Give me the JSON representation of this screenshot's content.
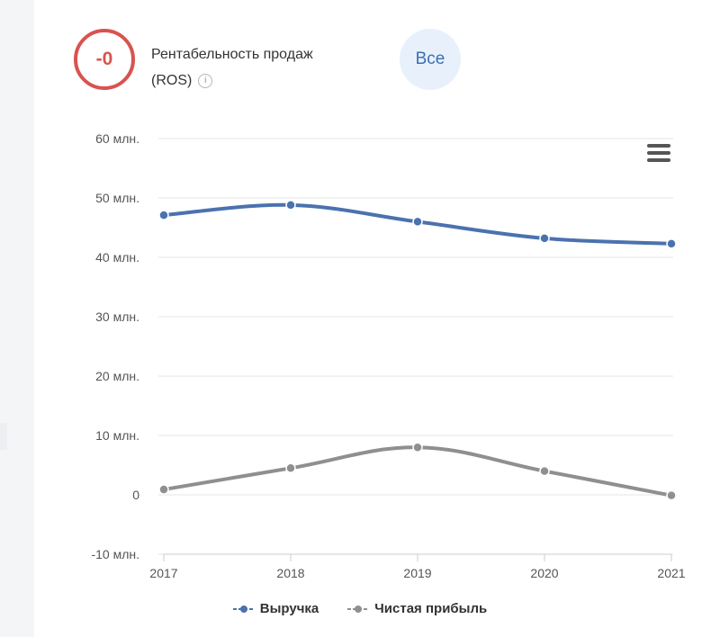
{
  "header": {
    "indicator_value": "-0",
    "indicator_color": "#d9534f",
    "title": "Рентабельность продаж",
    "subtitle": "(ROS)",
    "info_icon": "info-icon",
    "filter_button_label": "Все",
    "menu_icon": "hamburger-menu-icon"
  },
  "chart_data": {
    "type": "line",
    "x": [
      "2017",
      "2018",
      "2019",
      "2020",
      "2021"
    ],
    "y_ticks": [
      "-10 млн.",
      "0",
      "10 млн.",
      "20 млн.",
      "30 млн.",
      "40 млн.",
      "50 млн.",
      "60 млн."
    ],
    "y_tick_values": [
      -10,
      0,
      10,
      20,
      30,
      40,
      50,
      60
    ],
    "ylim": [
      -10,
      60
    ],
    "unit": "млн.",
    "grid": true,
    "legend_position": "bottom",
    "series": [
      {
        "name": "Выручка",
        "color": "#4a72ae",
        "values": [
          47.1,
          48.8,
          46.0,
          43.2,
          42.3
        ]
      },
      {
        "name": "Чистая прибыль",
        "color": "#8f8f8f",
        "values": [
          0.9,
          4.5,
          8.0,
          4.0,
          -0.1
        ]
      }
    ]
  }
}
